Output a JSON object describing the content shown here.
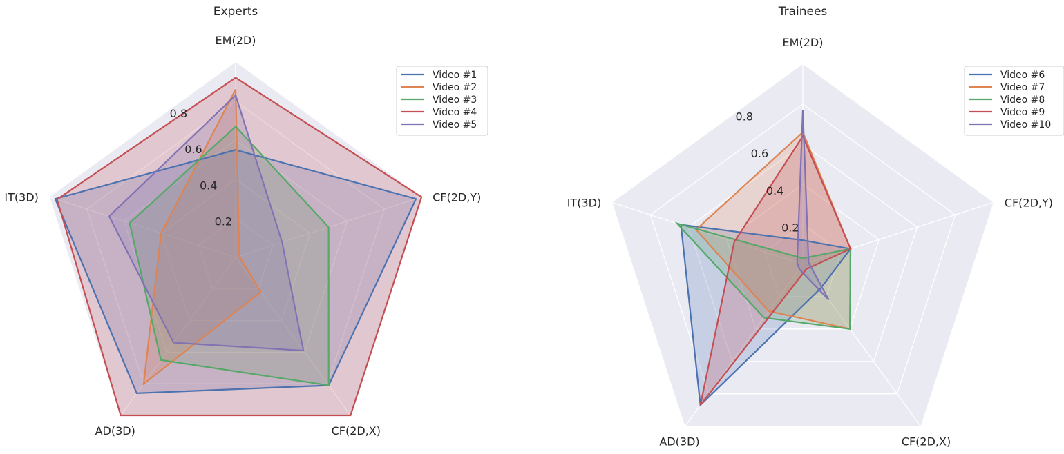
{
  "chart_data": [
    {
      "type": "radar",
      "title": "Experts",
      "axes": [
        "EM(2D)",
        "CF(2D,Y)",
        "CF(2D,X)",
        "AD(3D)",
        "IT(3D)"
      ],
      "rlim": [
        0,
        1.0
      ],
      "rticks": [
        0.2,
        0.4,
        0.6,
        0.8
      ],
      "rtick_labels": [
        "0.2",
        "0.4",
        "0.6",
        "0.8"
      ],
      "grid": true,
      "legend_position": "top-right",
      "series": [
        {
          "name": "Video #1",
          "color": "#4c72b0",
          "values": [
            0.55,
            0.97,
            0.81,
            0.86,
            0.97
          ]
        },
        {
          "name": "Video #2",
          "color": "#dd8452",
          "values": [
            0.86,
            0.02,
            0.22,
            0.8,
            0.4
          ]
        },
        {
          "name": "Video #3",
          "color": "#55a868",
          "values": [
            0.67,
            0.5,
            0.81,
            0.65,
            0.57
          ]
        },
        {
          "name": "Video #4",
          "color": "#c44e52",
          "values": [
            0.92,
            1.0,
            1.0,
            1.0,
            0.96
          ]
        },
        {
          "name": "Video #5",
          "color": "#8172b3",
          "values": [
            0.83,
            0.25,
            0.59,
            0.54,
            0.68
          ]
        }
      ]
    },
    {
      "type": "radar",
      "title": "Trainees",
      "axes": [
        "EM(2D)",
        "CF(2D,Y)",
        "CF(2D,X)",
        "AD(3D)",
        "IT(3D)"
      ],
      "rlim": [
        0,
        1.0
      ],
      "rticks": [
        0.2,
        0.4,
        0.6,
        0.8
      ],
      "rtick_labels": [
        "0.2",
        "0.4",
        "0.6",
        "0.8"
      ],
      "grid": true,
      "legend_position": "top-right",
      "series": [
        {
          "name": "Video #6",
          "color": "#4c72b0",
          "values": [
            0.12,
            0.25,
            0.15,
            0.87,
            0.64
          ]
        },
        {
          "name": "Video #7",
          "color": "#dd8452",
          "values": [
            0.66,
            0.25,
            0.4,
            0.29,
            0.56
          ]
        },
        {
          "name": "Video #8",
          "color": "#55a868",
          "values": [
            0.03,
            0.25,
            0.4,
            0.33,
            0.66
          ]
        },
        {
          "name": "Video #9",
          "color": "#c44e52",
          "values": [
            0.64,
            0.25,
            0.03,
            0.87,
            0.36
          ]
        },
        {
          "name": "Video #10",
          "color": "#8172b3",
          "values": [
            0.77,
            0.03,
            0.22,
            0.03,
            0.03
          ]
        }
      ]
    }
  ]
}
